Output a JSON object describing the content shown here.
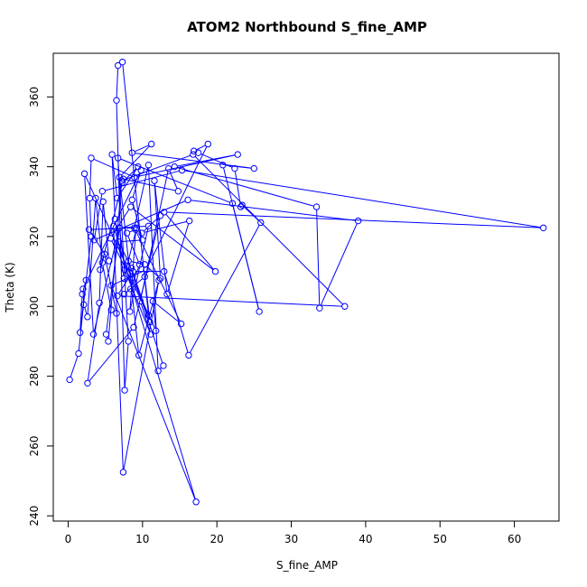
{
  "chart_data": {
    "type": "scatter",
    "title": "ATOM2 Northbound S_fine_AMP",
    "xlabel": "S_fine_AMP",
    "ylabel": "Theta (K)",
    "xlim": [
      -2,
      66
    ],
    "ylim": [
      238.5,
      372.5
    ],
    "x_ticks": [
      0,
      10,
      20,
      30,
      40,
      50,
      60
    ],
    "y_ticks": [
      240,
      260,
      280,
      300,
      320,
      340,
      360
    ],
    "grid": false,
    "legend": "none",
    "series": [
      {
        "style": "points-connected",
        "color": "#0000ff",
        "points": [
          [
            0.2,
            279
          ],
          [
            1.4,
            286.5
          ],
          [
            2.4,
            307.5
          ],
          [
            1.9,
            303.5
          ],
          [
            1.6,
            292.5
          ],
          [
            3.1,
            320
          ],
          [
            2.9,
            331
          ],
          [
            3.1,
            342.5
          ],
          [
            8.9,
            337
          ],
          [
            22.8,
            343.5
          ],
          [
            14.3,
            340
          ],
          [
            33.4,
            328.5
          ],
          [
            33.8,
            299.5
          ],
          [
            39,
            324.5
          ],
          [
            16.1,
            330.5
          ],
          [
            3.5,
            319
          ],
          [
            4.6,
            333
          ],
          [
            15.3,
            339
          ],
          [
            63.9,
            322.5
          ],
          [
            12.9,
            327
          ],
          [
            19.8,
            310
          ],
          [
            8.4,
            328.5
          ],
          [
            5.7,
            319.5
          ],
          [
            10.8,
            297.5
          ],
          [
            7.3,
            370
          ],
          [
            6.7,
            369
          ],
          [
            6.5,
            359
          ],
          [
            7.6,
            276
          ],
          [
            8.1,
            290
          ],
          [
            6.7,
            342.5
          ],
          [
            22.1,
            329.5
          ],
          [
            25.7,
            298.5
          ],
          [
            20.8,
            340.5
          ],
          [
            25,
            339.5
          ],
          [
            8.6,
            344
          ],
          [
            11.2,
            346.5
          ],
          [
            6.9,
            337
          ],
          [
            9.5,
            286
          ],
          [
            12.2,
            307.5
          ],
          [
            7.4,
            252.5
          ],
          [
            6.1,
            323
          ],
          [
            17.2,
            244
          ],
          [
            5.8,
            306
          ],
          [
            10.5,
            310.5
          ],
          [
            18.8,
            346.5
          ],
          [
            16.9,
            344.5
          ],
          [
            17.5,
            344
          ],
          [
            22.4,
            339.5
          ],
          [
            23.2,
            328.5
          ],
          [
            23.4,
            329
          ],
          [
            25.9,
            324
          ],
          [
            16.2,
            286
          ],
          [
            12.9,
            310
          ],
          [
            8.7,
            310
          ],
          [
            6.6,
            303
          ],
          [
            37.2,
            300
          ],
          [
            16.8,
            343.5
          ],
          [
            7.2,
            336
          ],
          [
            5.4,
            290
          ],
          [
            5.1,
            292
          ],
          [
            6.9,
            322.5
          ],
          [
            3.4,
            292
          ],
          [
            2.2,
            338
          ],
          [
            11.8,
            293
          ],
          [
            11.4,
            301.5
          ],
          [
            15.2,
            295
          ],
          [
            8.9,
            322.5
          ],
          [
            10.8,
            340.5
          ],
          [
            12.1,
            281.5
          ],
          [
            12.8,
            283
          ],
          [
            8.1,
            313
          ],
          [
            10.3,
            312
          ],
          [
            12.4,
            308
          ],
          [
            11.6,
            336
          ],
          [
            13.3,
            303.5
          ],
          [
            16.3,
            324.5
          ],
          [
            9.9,
            321
          ],
          [
            12.4,
            326
          ],
          [
            8.8,
            294
          ],
          [
            2.6,
            278
          ],
          [
            4.2,
            301
          ],
          [
            4.7,
            330
          ],
          [
            5.5,
            313
          ],
          [
            2.8,
            322
          ],
          [
            9.2,
            322.5
          ],
          [
            7.5,
            308
          ],
          [
            6.3,
            325
          ],
          [
            5.9,
            343.5
          ],
          [
            6.6,
            331
          ],
          [
            9.4,
            340
          ],
          [
            7.3,
            335.5
          ],
          [
            4.3,
            310.5
          ],
          [
            4.9,
            315
          ],
          [
            6.5,
            298
          ],
          [
            5.8,
            299
          ],
          [
            4.6,
            312.5
          ],
          [
            3.7,
            331
          ],
          [
            2.6,
            297
          ],
          [
            2.1,
            300.5
          ],
          [
            2,
            305
          ],
          [
            9.8,
            339
          ],
          [
            8.6,
            330.5
          ],
          [
            10,
            319
          ],
          [
            6.8,
            318.5
          ],
          [
            8.5,
            311
          ],
          [
            11,
            295.5
          ],
          [
            10.3,
            308.5
          ],
          [
            7.5,
            303.5
          ],
          [
            8.4,
            305
          ],
          [
            9.6,
            312
          ],
          [
            7.9,
            321
          ],
          [
            9.1,
            322
          ],
          [
            8.3,
            298.5
          ],
          [
            10.8,
            323
          ],
          [
            6.9,
            322.5
          ],
          [
            7.6,
            310.5
          ],
          [
            11.1,
            292
          ],
          [
            9.7,
            301.5
          ],
          [
            13.5,
            339.5
          ],
          [
            14.8,
            333
          ],
          [
            7.4,
            336.5
          ]
        ]
      }
    ]
  }
}
